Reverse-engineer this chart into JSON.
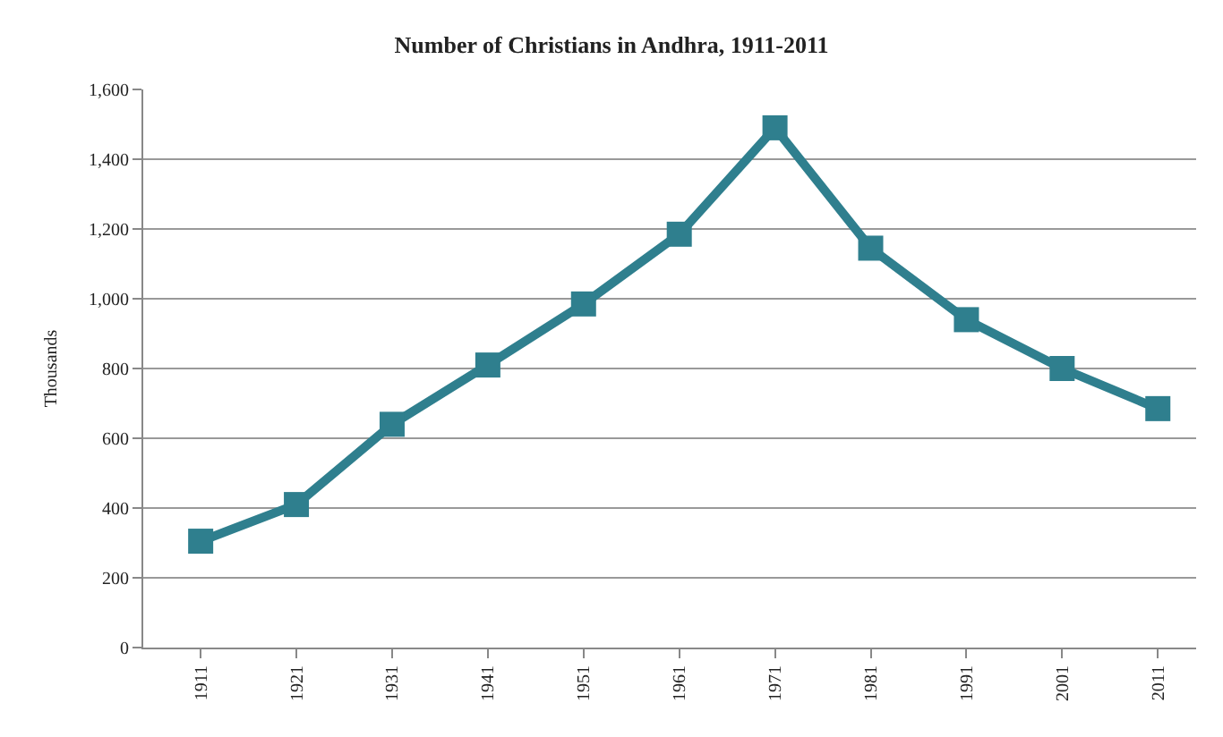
{
  "chart_data": {
    "type": "line",
    "title": "Number of Christians in Andhra, 1911-2011",
    "ylabel": "Thousands",
    "categories": [
      "1911",
      "1921",
      "1931",
      "1941",
      "1951",
      "1961",
      "1971",
      "1981",
      "1991",
      "2001",
      "2011"
    ],
    "series": [
      {
        "color": "#2f7f8e",
        "values": [
          305,
          410,
          640,
          810,
          985,
          1185,
          1490,
          1145,
          940,
          800,
          685
        ]
      }
    ],
    "ylim": [
      0,
      1600
    ],
    "yticks": [
      {
        "value": 0,
        "label": "0"
      },
      {
        "value": 200,
        "label": "200"
      },
      {
        "value": 400,
        "label": "400"
      },
      {
        "value": 600,
        "label": "600"
      },
      {
        "value": 800,
        "label": "800"
      },
      {
        "value": 1000,
        "label": "1,000"
      },
      {
        "value": 1200,
        "label": "1,200"
      },
      {
        "value": 1400,
        "label": "1,400"
      },
      {
        "value": 1600,
        "label": "1,600"
      }
    ],
    "grid": "y",
    "marker": "square",
    "line_style": "solid"
  }
}
